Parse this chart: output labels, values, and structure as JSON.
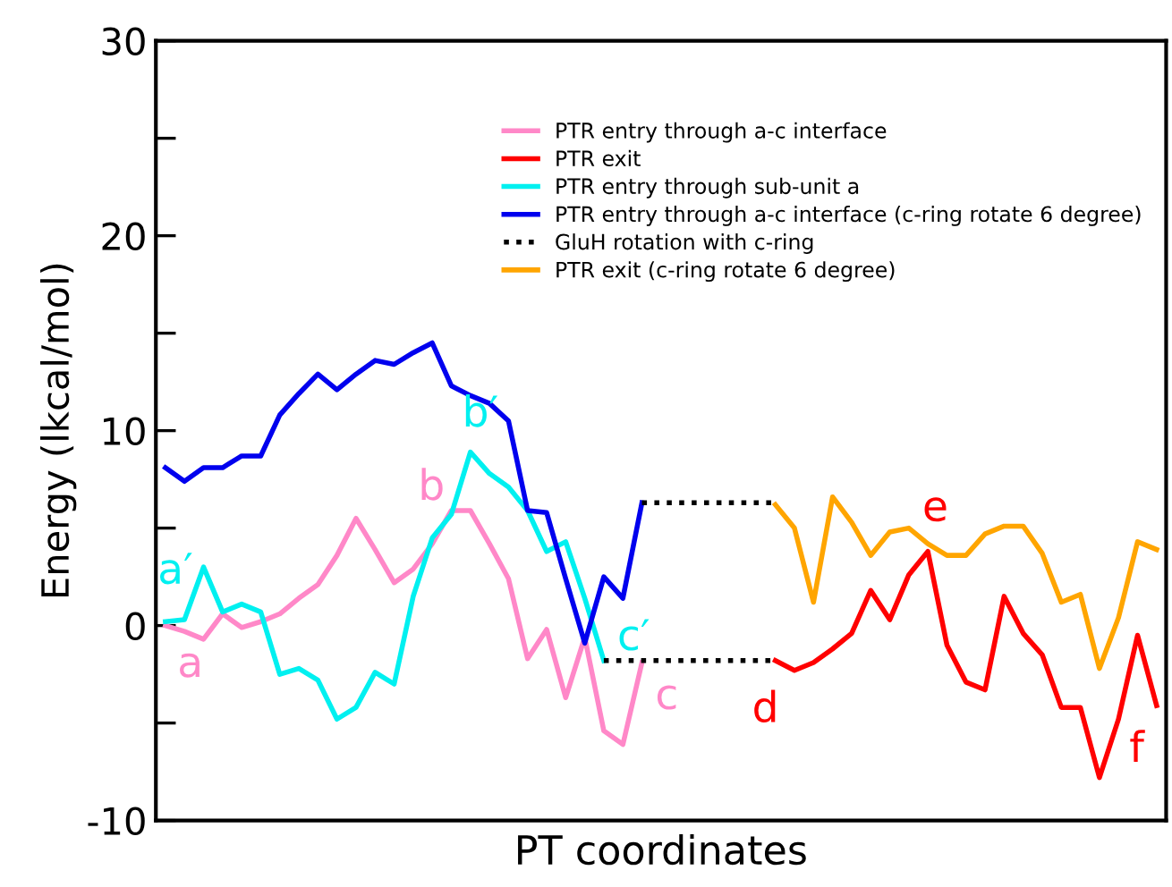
{
  "chart_data": {
    "type": "line",
    "xlabel": "PT coordinates",
    "ylabel": "Energy (lkcal/mol)",
    "categories": [
      null,
      null,
      null,
      null,
      null,
      null,
      null,
      null,
      null,
      null,
      null,
      null,
      null,
      null,
      null,
      null,
      null,
      null,
      null,
      null,
      null,
      null,
      null,
      null,
      null,
      null,
      null,
      null,
      null,
      null,
      null,
      null,
      null,
      null,
      null,
      null,
      null,
      null,
      null,
      null,
      null,
      null,
      null,
      null,
      null,
      null,
      null,
      null,
      null,
      null,
      null,
      null,
      null
    ],
    "ylim": [
      -10,
      30
    ],
    "yticks": [
      -10,
      {
        "value": -5,
        "label": null
      },
      0,
      {
        "value": 5,
        "label": null
      },
      10,
      {
        "value": 15,
        "label": null
      },
      20,
      {
        "value": 25,
        "label": null
      },
      30
    ],
    "legend": "top right",
    "marker": "none",
    "series": [
      {
        "name": "PTR entry through a-c interface",
        "color": "#ff88c8",
        "values": [
          0.0,
          -0.3,
          -0.7,
          0.6,
          -0.1,
          0.2,
          0.6,
          1.4,
          2.1,
          3.6,
          5.5,
          3.9,
          2.2,
          2.9,
          4.2,
          5.9,
          5.9,
          4.2,
          2.4,
          -1.7,
          -0.2,
          -3.7,
          -0.6,
          -5.4,
          -6.1,
          -1.9,
          null,
          null,
          null,
          null,
          null,
          null,
          null,
          null,
          null,
          null,
          null,
          null,
          null,
          null,
          null,
          null,
          null,
          null,
          null,
          null,
          null,
          null,
          null,
          null,
          null,
          null,
          null
        ]
      },
      {
        "name": "PTR exit",
        "color": "#ff0000",
        "values": [
          null,
          null,
          null,
          null,
          null,
          null,
          null,
          null,
          null,
          null,
          null,
          null,
          null,
          null,
          null,
          null,
          null,
          null,
          null,
          null,
          null,
          null,
          null,
          null,
          null,
          null,
          null,
          null,
          null,
          null,
          null,
          null,
          -1.8,
          -2.3,
          -1.9,
          -1.2,
          -0.4,
          1.8,
          0.3,
          2.6,
          3.8,
          -1.0,
          -2.9,
          -3.3,
          1.5,
          -0.4,
          -1.5,
          -4.2,
          -4.2,
          -7.8,
          -4.8,
          -0.5,
          -4.1
        ]
      },
      {
        "name": "PTR entry through sub-unit a",
        "color": "#00f0f0",
        "values": [
          0.2,
          0.3,
          3.0,
          0.7,
          1.1,
          0.7,
          -2.5,
          -2.2,
          -2.8,
          -4.8,
          -4.2,
          -2.4,
          -3.0,
          1.5,
          4.5,
          5.7,
          8.9,
          7.8,
          7.1,
          5.9,
          3.8,
          4.3,
          1.4,
          -1.8,
          null,
          null,
          null,
          null,
          null,
          null,
          null,
          null,
          null,
          null,
          null,
          null,
          null,
          null,
          null,
          null,
          null,
          null,
          null,
          null,
          null,
          null,
          null,
          null,
          null,
          null,
          null,
          null,
          null
        ]
      },
      {
        "name": "PTR entry through a-c interface (c-ring rotate 6 degree)",
        "color": "#0000ee",
        "values": [
          8.1,
          7.4,
          8.1,
          8.1,
          8.7,
          8.7,
          10.8,
          11.9,
          12.9,
          12.1,
          12.9,
          13.6,
          13.4,
          14.0,
          14.5,
          12.3,
          11.8,
          11.4,
          10.5,
          5.9,
          5.8,
          2.4,
          -0.9,
          2.5,
          1.4,
          6.3,
          null,
          null,
          null,
          null,
          null,
          null,
          null,
          null,
          null,
          null,
          null,
          null,
          null,
          null,
          null,
          null,
          null,
          null,
          null,
          null,
          null,
          null,
          null,
          null,
          null,
          null,
          null
        ]
      },
      {
        "name": "GluH rotation with c-ring",
        "color": "#000000",
        "line_style": "dotted",
        "values": [
          null,
          null,
          null,
          null,
          null,
          null,
          null,
          null,
          null,
          null,
          null,
          null,
          null,
          null,
          null,
          null,
          null,
          null,
          null,
          null,
          null,
          null,
          null,
          -1.8,
          -1.8,
          -1.8,
          -1.8,
          -1.8,
          -1.8,
          -1.8,
          -1.8,
          -1.8,
          -1.8,
          null,
          null,
          null,
          null,
          null,
          null,
          null,
          null,
          null,
          null,
          null,
          null,
          null,
          null,
          null,
          null,
          null,
          null,
          null,
          null
        ]
      },
      {
        "color": "#000000",
        "line_style": "dotted",
        "values": [
          null,
          null,
          null,
          null,
          null,
          null,
          null,
          null,
          null,
          null,
          null,
          null,
          null,
          null,
          null,
          null,
          null,
          null,
          null,
          null,
          null,
          null,
          null,
          null,
          null,
          6.3,
          6.3,
          6.3,
          6.3,
          6.3,
          6.3,
          6.3,
          6.3,
          null,
          null,
          null,
          null,
          null,
          null,
          null,
          null,
          null,
          null,
          null,
          null,
          null,
          null,
          null,
          null,
          null,
          null,
          null,
          null
        ]
      },
      {
        "name": "PTR exit (c-ring rotate 6 degree)",
        "color": "#ffa500",
        "values": [
          null,
          null,
          null,
          null,
          null,
          null,
          null,
          null,
          null,
          null,
          null,
          null,
          null,
          null,
          null,
          null,
          null,
          null,
          null,
          null,
          null,
          null,
          null,
          null,
          null,
          null,
          null,
          null,
          null,
          null,
          null,
          null,
          6.2,
          5.0,
          1.2,
          6.6,
          5.3,
          3.6,
          4.8,
          5.0,
          4.2,
          3.6,
          3.6,
          4.7,
          5.1,
          5.1,
          3.7,
          1.2,
          1.6,
          -2.2,
          0.4,
          4.3,
          3.9
        ]
      }
    ],
    "annotations": [
      "a′",
      "a",
      "b",
      "b′",
      "c′",
      "c",
      "d",
      "e",
      "f"
    ]
  }
}
